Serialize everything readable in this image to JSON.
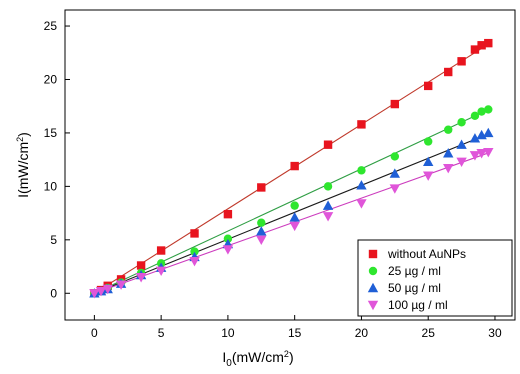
{
  "chart_data": {
    "type": "scatter",
    "xlabel_main": "I",
    "xlabel_sub": "0",
    "xlabel_rest": "(mW/cm",
    "xlabel_sup": "2",
    "xlabel_end": ")",
    "ylabel_main": "I(mW/cm",
    "ylabel_sup": "2",
    "ylabel_end": ")",
    "xlim": [
      -2.2,
      31.5
    ],
    "ylim": [
      -2.5,
      26.5
    ],
    "xticks": [
      0,
      5,
      10,
      15,
      20,
      25,
      30
    ],
    "yticks": [
      0,
      5,
      10,
      15,
      20,
      25
    ],
    "legend_position": "bottom-right",
    "series": [
      {
        "name": "without AuNPs",
        "marker": "square",
        "color": "#e8141e",
        "line_color": "#c0392b",
        "fit": [
          0,
          0.79
        ],
        "x": [
          0,
          0.5,
          1,
          2,
          3.5,
          5,
          7.5,
          10,
          12.5,
          15,
          17.5,
          20,
          22.5,
          25,
          26.5,
          27.5,
          28.5,
          29,
          29.5
        ],
        "y": [
          0,
          0.3,
          0.7,
          1.3,
          2.6,
          4.0,
          5.6,
          7.4,
          9.9,
          11.9,
          13.9,
          15.8,
          17.7,
          19.4,
          20.7,
          21.7,
          22.8,
          23.2,
          23.4
        ]
      },
      {
        "name": "25 µg / ml",
        "marker": "circle",
        "color": "#2ee62e",
        "line_color": "#2f9e44",
        "fit": [
          0,
          0.582
        ],
        "x": [
          0,
          0.5,
          1,
          2,
          3.5,
          5,
          7.5,
          10,
          12.5,
          15,
          17.5,
          20,
          22.5,
          25,
          26.5,
          27.5,
          28.5,
          29,
          29.5
        ],
        "y": [
          0,
          0.2,
          0.5,
          1.0,
          1.9,
          2.8,
          3.9,
          5.1,
          6.6,
          8.2,
          10.0,
          11.5,
          12.8,
          14.2,
          15.3,
          16.0,
          16.6,
          17.0,
          17.2
        ]
      },
      {
        "name": "50 µg / ml",
        "marker": "triangle-up",
        "color": "#1f5fd6",
        "line_color": "#1a1a1a",
        "fit": [
          0,
          0.505
        ],
        "x": [
          0,
          0.5,
          1,
          2,
          3.5,
          5,
          7.5,
          10,
          12.5,
          15,
          17.5,
          20,
          22.5,
          25,
          26.5,
          27.5,
          28.5,
          29,
          29.5
        ],
        "y": [
          0,
          0.2,
          0.4,
          0.9,
          1.7,
          2.4,
          3.4,
          4.6,
          5.8,
          7.1,
          8.2,
          10.1,
          11.2,
          12.3,
          13.1,
          13.9,
          14.5,
          14.8,
          15.0
        ]
      },
      {
        "name": "100 µg / ml",
        "marker": "triangle-down",
        "color": "#e055d9",
        "line_color": "#cc3cbe",
        "fit": [
          0,
          0.445
        ],
        "x": [
          0,
          0.5,
          1,
          2,
          3.5,
          5,
          7.5,
          10,
          12.5,
          15,
          17.5,
          20,
          22.5,
          25,
          26.5,
          27.5,
          28.5,
          29,
          29.5
        ],
        "y": [
          0,
          0.2,
          0.4,
          0.8,
          1.5,
          2.1,
          3.0,
          4.1,
          5.0,
          6.3,
          7.2,
          8.4,
          9.8,
          11.0,
          11.7,
          12.3,
          12.9,
          13.1,
          13.2
        ]
      }
    ]
  }
}
